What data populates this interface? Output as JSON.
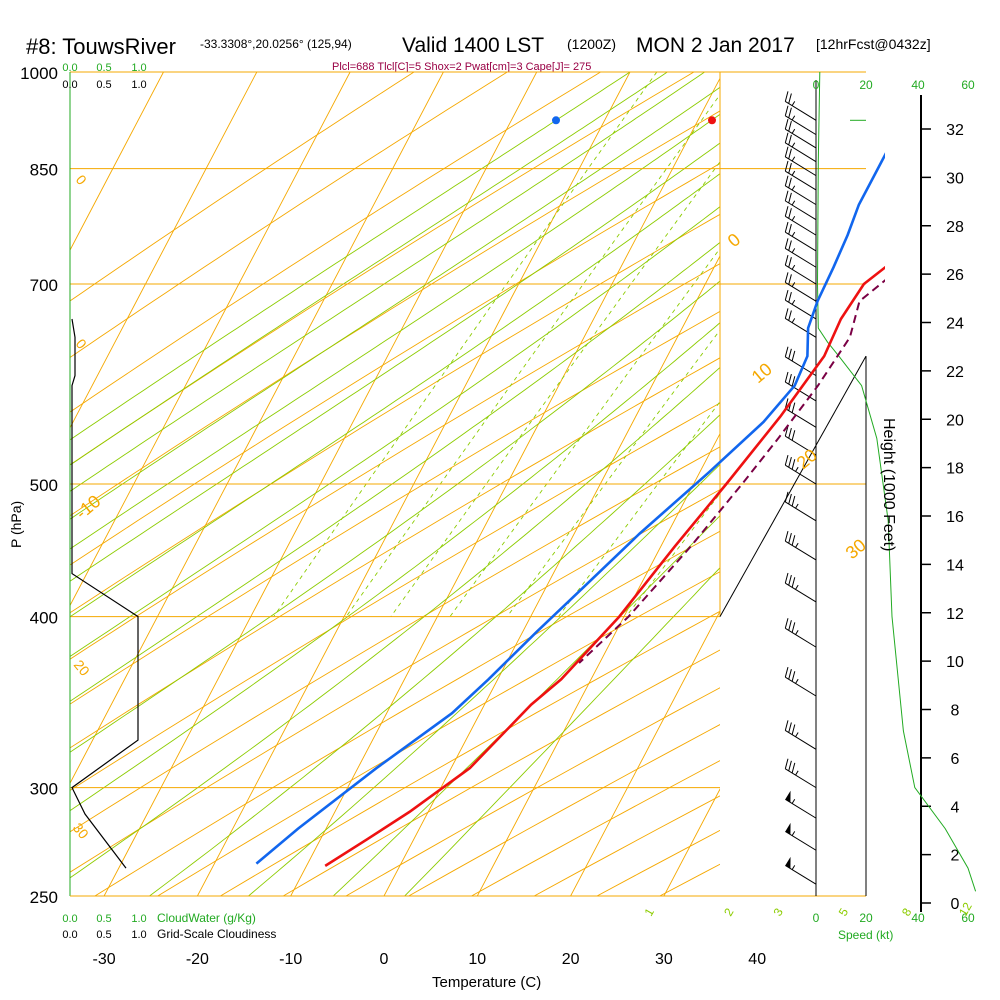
{
  "header": {
    "station": "#8: TouwsRiver",
    "coords": "-33.3308°,20.0256° (125,94)",
    "valid": "Valid 1400 LST",
    "zulu": "(1200Z)",
    "date": "MON 2 Jan 2017",
    "forecast": "[12hrFcst@0432z]",
    "indices": "Plcl=688 Tlcl[C]=5 Shox=2 Pwat[cm]=3 Cape[J]= 275"
  },
  "colors": {
    "isotherm": "#f5a800",
    "dry_adiabat": "#f5a800",
    "moist_adiabat": "#8ccc00",
    "mixing_ratio": "#8ccc00",
    "temperature": "#ee1111",
    "dewpoint": "#1166ee",
    "parcel": "#7a0044",
    "green_text": "#22aa22",
    "indices_text": "#990044"
  },
  "chart_data": {
    "type": "line",
    "title": "Skew-T log-P sounding",
    "xlabel": "Temperature (C)",
    "ylabel": "P (hPa)",
    "y2label": "Height (1000 Feet)",
    "xlim": [
      -35,
      45
    ],
    "ylim": [
      1000,
      250
    ],
    "x_ticks": [
      -30,
      -20,
      -10,
      0,
      10,
      20,
      30,
      40
    ],
    "pressure_levels": [
      1000,
      850,
      700,
      500,
      400,
      300,
      250
    ],
    "pressure_tick_labels": [
      "1000",
      "850",
      "700",
      "500",
      "400",
      "300",
      "250"
    ],
    "height_ticks": [
      0,
      2,
      4,
      6,
      8,
      10,
      12,
      14,
      16,
      18,
      20,
      22,
      24,
      26,
      28,
      30,
      32
    ],
    "height_tick_labels": [
      "0",
      "2",
      "4",
      "6",
      "8",
      "10",
      "12",
      "14",
      "16",
      "18",
      "20",
      "22",
      "24",
      "26",
      "28",
      "30",
      "32"
    ],
    "dry_adiabat_labels": [
      "-10",
      "0",
      "10",
      "20",
      "30"
    ],
    "moist_adiabat_labels": [
      "0",
      "10",
      "20",
      "30"
    ],
    "mixing_ratio_labels": [
      "1",
      "2",
      "3",
      "5",
      "8",
      "12",
      "20"
    ],
    "cloud_axis": {
      "cloudwater_ticks": [
        "0.0",
        "0.5",
        "1.0"
      ],
      "cloudiness_ticks": [
        "0.0",
        "0.5",
        "1.0"
      ],
      "cloudwater_label": "CloudWater (g/Kg)",
      "cloudiness_label": "Grid-Scale Cloudiness"
    },
    "speed_axis": {
      "ticks": [
        "0",
        "20",
        "40",
        "60"
      ],
      "label": "Speed (kt)",
      "max": 60
    },
    "series": [
      {
        "name": "Temperature",
        "points": [
          [
            34.5,
            922
          ],
          [
            31.5,
            875
          ],
          [
            29.5,
            845
          ],
          [
            25,
            800
          ],
          [
            20,
            745
          ],
          [
            17,
            700
          ],
          [
            16.5,
            660
          ],
          [
            16.8,
            620
          ],
          [
            15.5,
            560
          ],
          [
            13.5,
            500
          ],
          [
            11.5,
            450
          ],
          [
            9.5,
            400
          ],
          [
            6.8,
            360
          ],
          [
            5,
            345
          ],
          [
            2,
            310
          ],
          [
            -2,
            288
          ],
          [
            -5,
            275
          ],
          [
            -8,
            263
          ]
        ]
      },
      {
        "name": "Dewpoint",
        "points": [
          [
            14,
            922
          ],
          [
            12.8,
            920
          ],
          [
            12,
            905
          ],
          [
            12,
            875
          ],
          [
            12,
            840
          ],
          [
            12,
            800
          ],
          [
            12.5,
            760
          ],
          [
            12.8,
            720
          ],
          [
            13,
            680
          ],
          [
            13.5,
            650
          ],
          [
            15,
            620
          ],
          [
            15.3,
            590
          ],
          [
            14,
            555
          ],
          [
            11,
            510
          ],
          [
            7,
            460
          ],
          [
            4,
            420
          ],
          [
            1.5,
            390
          ],
          [
            -1,
            360
          ],
          [
            -3,
            340
          ],
          [
            -8,
            310
          ],
          [
            -13,
            280
          ],
          [
            -15.5,
            264
          ]
        ]
      },
      {
        "name": "Parcel",
        "points": [
          [
            34.5,
            920
          ],
          [
            29.5,
            845
          ],
          [
            26,
            800
          ],
          [
            21.5,
            745
          ],
          [
            18.8,
            700
          ],
          [
            17.5,
            680
          ],
          [
            18.5,
            640
          ],
          [
            17.8,
            590
          ],
          [
            16.5,
            540
          ],
          [
            15.2,
            500
          ],
          [
            13.2,
            450
          ],
          [
            10.5,
            400
          ],
          [
            7.8,
            370
          ]
        ]
      }
    ],
    "surface_markers": [
      {
        "name": "surface temperature",
        "x": 35,
        "p": 922
      },
      {
        "name": "surface dewpoint",
        "x": 18.5,
        "p": 922
      }
    ],
    "cloud_water": [
      [
        0.12,
        850
      ],
      [
        0.02,
        850
      ]
    ],
    "cloudiness": [
      [
        0.9,
        262
      ],
      [
        0.22,
        287
      ],
      [
        0.02,
        300
      ],
      [
        0.97,
        325
      ],
      [
        0.97,
        400
      ],
      [
        0.02,
        430
      ],
      [
        0.02,
        590
      ],
      [
        0.08,
        600
      ],
      [
        0.08,
        640
      ],
      [
        0.02,
        660
      ]
    ],
    "wind_profile": [
      [
        5,
        922
      ],
      [
        8,
        905
      ],
      [
        10,
        880
      ],
      [
        14,
        850
      ],
      [
        15,
        800
      ],
      [
        16,
        750
      ],
      [
        16.5,
        700
      ],
      [
        18,
        660
      ],
      [
        20,
        640
      ],
      [
        22,
        600
      ],
      [
        28,
        560
      ],
      [
        35,
        500
      ],
      [
        43,
        440
      ],
      [
        52,
        400
      ],
      [
        52,
        300
      ],
      [
        52,
        250
      ]
    ],
    "height_profile": [
      [
        0.5,
        1000
      ],
      [
        0.3,
        860
      ],
      [
        0.2,
        700
      ],
      [
        0.3,
        650
      ],
      [
        1.5,
        635
      ],
      [
        3,
        620
      ],
      [
        6,
        590
      ],
      [
        8,
        540
      ],
      [
        9.5,
        470
      ],
      [
        10,
        400
      ],
      [
        11.5,
        330
      ],
      [
        13,
        300
      ],
      [
        17,
        280
      ],
      [
        20,
        262
      ],
      [
        21,
        252
      ]
    ],
    "wind_barbs": [
      {
        "p": 922,
        "speed": 25,
        "dir": 300
      },
      {
        "p": 900,
        "speed": 25,
        "dir": 300
      },
      {
        "p": 880,
        "speed": 25,
        "dir": 300
      },
      {
        "p": 860,
        "speed": 25,
        "dir": 300
      },
      {
        "p": 840,
        "speed": 25,
        "dir": 300
      },
      {
        "p": 820,
        "speed": 25,
        "dir": 300
      },
      {
        "p": 800,
        "speed": 25,
        "dir": 300
      },
      {
        "p": 780,
        "speed": 25,
        "dir": 300
      },
      {
        "p": 760,
        "speed": 25,
        "dir": 300
      },
      {
        "p": 740,
        "speed": 25,
        "dir": 300
      },
      {
        "p": 720,
        "speed": 25,
        "dir": 300
      },
      {
        "p": 700,
        "speed": 25,
        "dir": 300
      },
      {
        "p": 680,
        "speed": 25,
        "dir": 300
      },
      {
        "p": 660,
        "speed": 25,
        "dir": 300
      },
      {
        "p": 640,
        "speed": 25,
        "dir": 300
      },
      {
        "p": 600,
        "speed": 30,
        "dir": 300
      },
      {
        "p": 575,
        "speed": 30,
        "dir": 300
      },
      {
        "p": 550,
        "speed": 30,
        "dir": 300
      },
      {
        "p": 525,
        "speed": 30,
        "dir": 300
      },
      {
        "p": 500,
        "speed": 35,
        "dir": 300
      },
      {
        "p": 470,
        "speed": 35,
        "dir": 300
      },
      {
        "p": 440,
        "speed": 35,
        "dir": 300
      },
      {
        "p": 410,
        "speed": 35,
        "dir": 300
      },
      {
        "p": 380,
        "speed": 35,
        "dir": 300
      },
      {
        "p": 350,
        "speed": 35,
        "dir": 300
      },
      {
        "p": 320,
        "speed": 35,
        "dir": 300
      },
      {
        "p": 300,
        "speed": 35,
        "dir": 300
      },
      {
        "p": 285,
        "speed": 55,
        "dir": 300
      },
      {
        "p": 270,
        "speed": 55,
        "dir": 300
      },
      {
        "p": 255,
        "speed": 55,
        "dir": 300
      }
    ]
  }
}
